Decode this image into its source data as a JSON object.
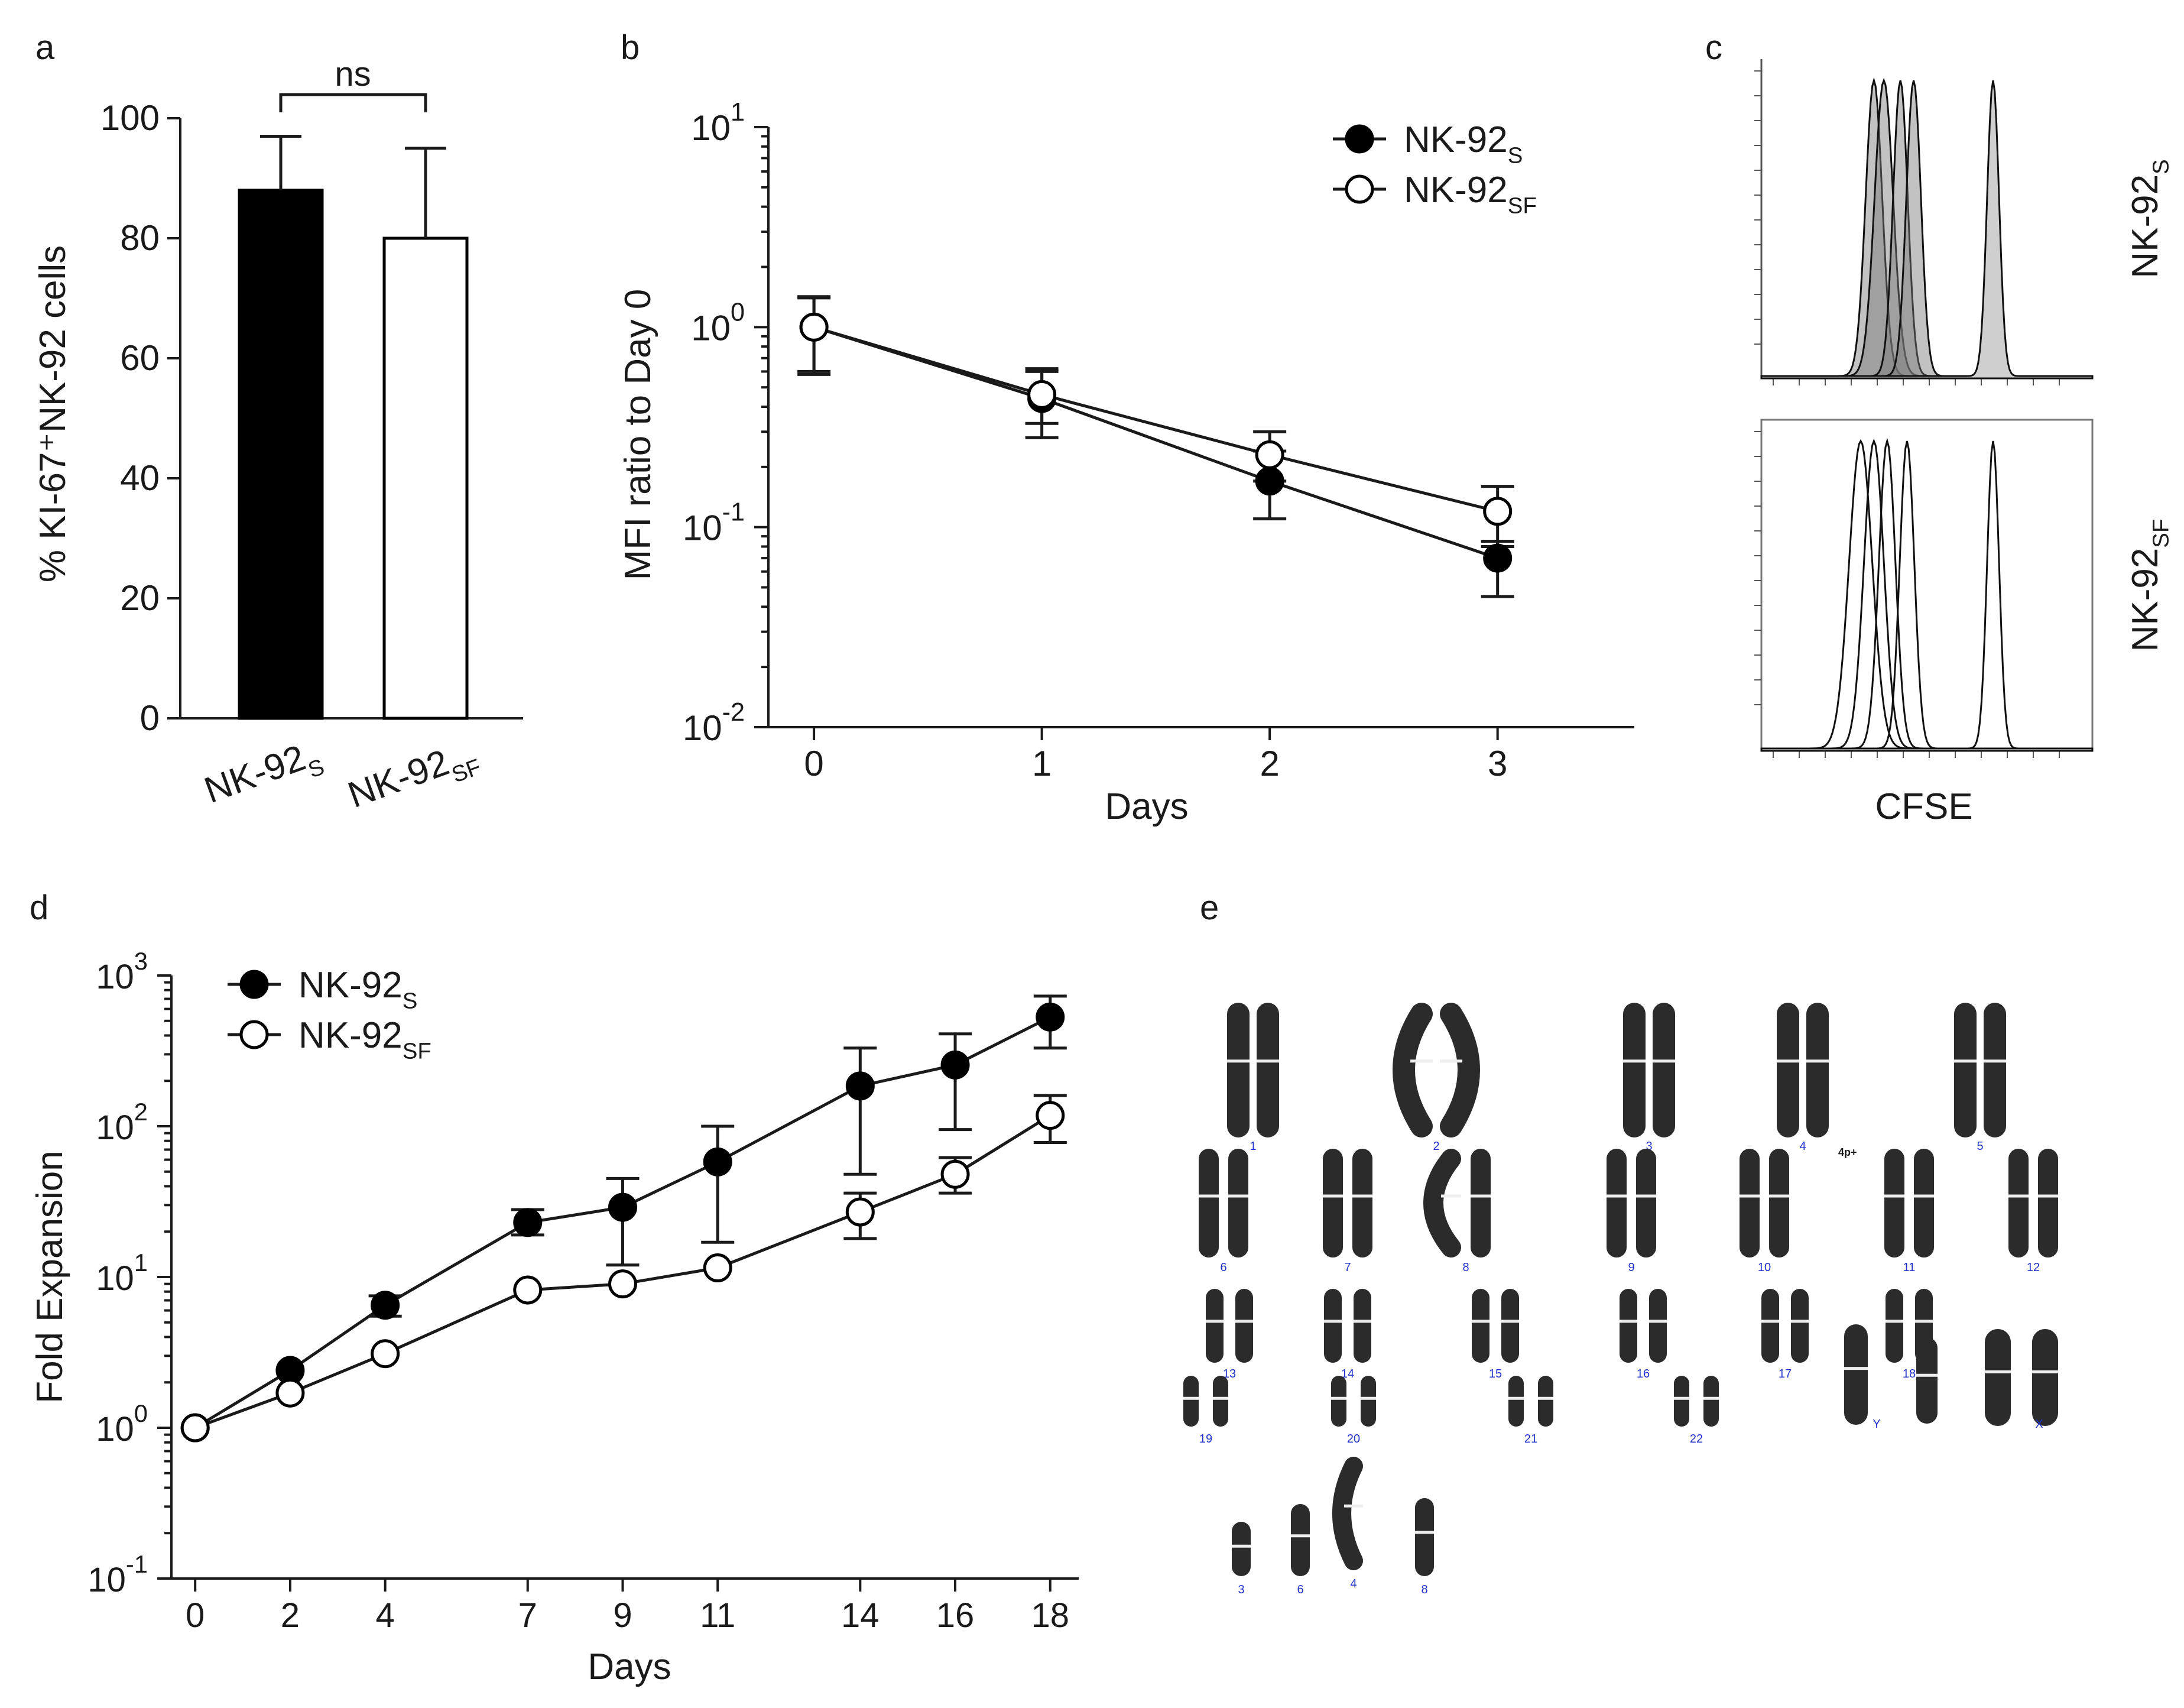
{
  "panel_labels": {
    "a": "a",
    "b": "b",
    "c": "c",
    "d": "d",
    "e": "e"
  },
  "chart_data": [
    {
      "id": "a",
      "type": "bar",
      "title": "",
      "ylabel": "% KI-67⁺NK-92 cells",
      "xlabel": "",
      "ylim": [
        0,
        100
      ],
      "yticks": [
        0,
        20,
        40,
        60,
        80,
        100
      ],
      "categories": [
        {
          "base": "NK-92",
          "sub": "S"
        },
        {
          "base": "NK-92",
          "sub": "SF"
        }
      ],
      "values": [
        88,
        80
      ],
      "errors": [
        9,
        15
      ],
      "fills": [
        "#000000",
        "#ffffff"
      ],
      "annotation": "ns"
    },
    {
      "id": "b",
      "type": "line",
      "scale": "log",
      "ylabel": "MFI ratio to Day 0",
      "xlabel": "Days",
      "xlim": [
        -0.2,
        3.6
      ],
      "xticks": [
        0,
        1,
        2,
        3
      ],
      "yexp": [
        -2,
        -1,
        0,
        1
      ],
      "legend": {
        "placement": "top-right"
      },
      "series": [
        {
          "name": {
            "base": "NK-92",
            "sub": "S"
          },
          "marker": "filled",
          "x": [
            0,
            1,
            2,
            3
          ],
          "y": [
            1.0,
            0.44,
            0.17,
            0.07
          ],
          "err_lo": [
            0.6,
            0.28,
            0.11,
            0.045
          ],
          "err_hi": [
            1.4,
            0.6,
            0.24,
            0.085
          ]
        },
        {
          "name": {
            "base": "NK-92",
            "sub": "SF"
          },
          "marker": "open",
          "x": [
            0,
            1,
            2,
            3
          ],
          "y": [
            1.0,
            0.46,
            0.23,
            0.12
          ],
          "err_lo": [
            0.58,
            0.33,
            0.17,
            0.08
          ],
          "err_hi": [
            1.42,
            0.62,
            0.3,
            0.16
          ]
        }
      ]
    },
    {
      "id": "c",
      "type": "histogram-overlay",
      "xlabel": "CFSE",
      "panels": [
        {
          "label": {
            "base": "NK-92",
            "sub": "S"
          },
          "filled": true,
          "peaks": [
            0.34,
            0.37,
            0.42,
            0.46,
            0.7
          ],
          "widths": [
            0.025,
            0.028,
            0.022,
            0.022,
            0.018
          ]
        },
        {
          "label": {
            "base": "NK-92",
            "sub": "SF"
          },
          "filled": false,
          "peaks": [
            0.3,
            0.34,
            0.38,
            0.44,
            0.7
          ],
          "widths": [
            0.035,
            0.03,
            0.025,
            0.022,
            0.018
          ]
        }
      ]
    },
    {
      "id": "d",
      "type": "line",
      "scale": "log",
      "ylabel": "Fold Expansion",
      "xlabel": "Days",
      "xlim": [
        -0.5,
        18.6
      ],
      "xticks": [
        0,
        2,
        4,
        7,
        9,
        11,
        14,
        16,
        18
      ],
      "yexp": [
        -1,
        0,
        1,
        2,
        3
      ],
      "legend": {
        "placement": "top-left"
      },
      "series": [
        {
          "name": {
            "base": "NK-92",
            "sub": "S"
          },
          "marker": "filled",
          "x": [
            0,
            2,
            4,
            7,
            9,
            11,
            14,
            16,
            18
          ],
          "y": [
            1.0,
            2.4,
            6.5,
            23,
            29,
            58,
            185,
            255,
            530
          ],
          "err_lo": [
            null,
            null,
            5.5,
            19,
            12,
            17,
            48,
            95,
            330
          ],
          "err_hi": [
            null,
            null,
            7.5,
            28,
            45,
            100,
            330,
            410,
            730
          ]
        },
        {
          "name": {
            "base": "NK-92",
            "sub": "SF"
          },
          "marker": "open",
          "x": [
            0,
            2,
            4,
            7,
            9,
            11,
            14,
            16,
            18
          ],
          "y": [
            1.0,
            1.7,
            3.1,
            8.2,
            9.0,
            11.5,
            27,
            48,
            118
          ],
          "err_lo": [
            null,
            null,
            null,
            null,
            null,
            null,
            18,
            36,
            78
          ],
          "err_hi": [
            null,
            null,
            null,
            null,
            null,
            null,
            36,
            62,
            160
          ]
        }
      ]
    }
  ],
  "karyotype": {
    "chromosome_numbers": [
      "1",
      "2",
      "3",
      "4",
      "5",
      "6",
      "7",
      "8",
      "9",
      "10",
      "11",
      "12",
      "13",
      "14",
      "15",
      "16",
      "17",
      "18",
      "19",
      "20",
      "21",
      "22",
      "Y",
      "X"
    ],
    "extra_markers": [
      "3",
      "6",
      "4",
      "8"
    ],
    "annotation": "4p+"
  }
}
